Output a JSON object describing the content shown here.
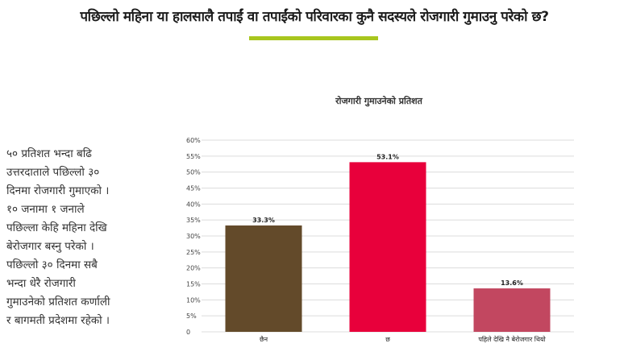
{
  "header": {
    "title": "पछिल्लो महिना या हालसालै तपाईं  वा तपाईंको परिवारका कुनै सदस्यले रोजगारी गुमाउनु परेको छ?",
    "accent_color": "#a8c61e"
  },
  "summary": {
    "lines": [
      "५० प्रतिशत भन्दा बढि",
      "उत्तरदाताले पछिल्लो ३०",
      "दिनमा रोजगारी गुमाएको ।",
      "१० जनामा १ जनाले",
      "पछिल्ला केहि महिना देखि",
      "बेरोजगार बस्नु परेको ।",
      "पछिल्लो ३० दिनमा सबै",
      "भन्दा धेरै रोजगारी",
      "गुमाउनेको प्रतिशत कर्णाली",
      "र बागमती प्रदेशमा रहेको ।"
    ]
  },
  "chart_data": {
    "type": "bar",
    "title": "रोजगारी गुमाउनेको प्रतिशत",
    "categories": [
      "छैन",
      "छ",
      "पहिले देखि नै बेरोजगार थियो"
    ],
    "values": [
      33.3,
      53.1,
      13.6
    ],
    "data_labels": [
      "33.3%",
      "53.1%",
      "13.6%"
    ],
    "colors": [
      "#634a2a",
      "#e8003b",
      "#c24760"
    ],
    "ylim": [
      0,
      60
    ],
    "yticks": [
      0,
      5,
      10,
      15,
      20,
      25,
      30,
      35,
      40,
      45,
      50,
      55,
      60
    ],
    "ytick_labels": [
      "0",
      "5%",
      "10%",
      "15%",
      "20%",
      "25%",
      "30%",
      "35%",
      "40%",
      "45%",
      "50%",
      "55%",
      "60%"
    ],
    "grid": true,
    "grid_color": "#dcdcdc"
  }
}
